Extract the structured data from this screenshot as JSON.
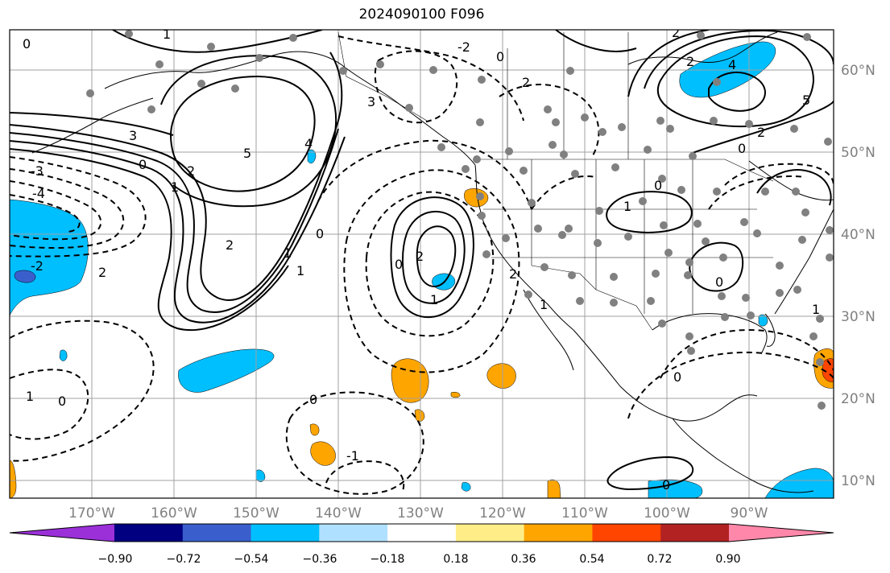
{
  "title": "2024090100 F096",
  "lat_labels": [
    "60°N",
    "50°N",
    "40°N",
    "30°N",
    "20°N",
    "10°N"
  ],
  "lon_labels": [
    "170°W",
    "160°W",
    "150°W",
    "140°W",
    "130°W",
    "120°W",
    "110°W",
    "100°W",
    "90°W"
  ],
  "colorbar": {
    "colors": [
      "#9b30d9",
      "#000080",
      "#3a5fcd",
      "#00bfff",
      "#b0e0ff",
      "#ffffff",
      "#ffee88",
      "#ffa500",
      "#ff4500",
      "#b22222",
      "#ff88aa"
    ],
    "tick_labels": [
      "−0.90",
      "−0.72",
      "−0.54",
      "−0.36",
      "−0.18",
      "0.18",
      "0.36",
      "0.54",
      "0.72",
      "0.90"
    ]
  },
  "contour_labels": [
    "3",
    "0",
    "2",
    "1",
    "-3",
    "-4",
    "-2",
    "2",
    "2",
    "1",
    "0",
    "1",
    "5",
    "4",
    "3",
    "2",
    "0",
    "2",
    "1",
    "0",
    "-1",
    "0",
    "2",
    "1",
    "0",
    "2",
    "5",
    "4",
    "2",
    "0",
    "2",
    "0",
    "1",
    "0",
    "1",
    "0",
    "0",
    "1",
    "0",
    "1",
    "-2"
  ],
  "colors": {
    "neg_fill": "#00bfff",
    "pos_fill": "#ffa500",
    "strong_pos": "#ff4500",
    "strong_neg": "#3a5fcd",
    "gridline": "#a0a0a0",
    "axis_label": "#808080"
  }
}
